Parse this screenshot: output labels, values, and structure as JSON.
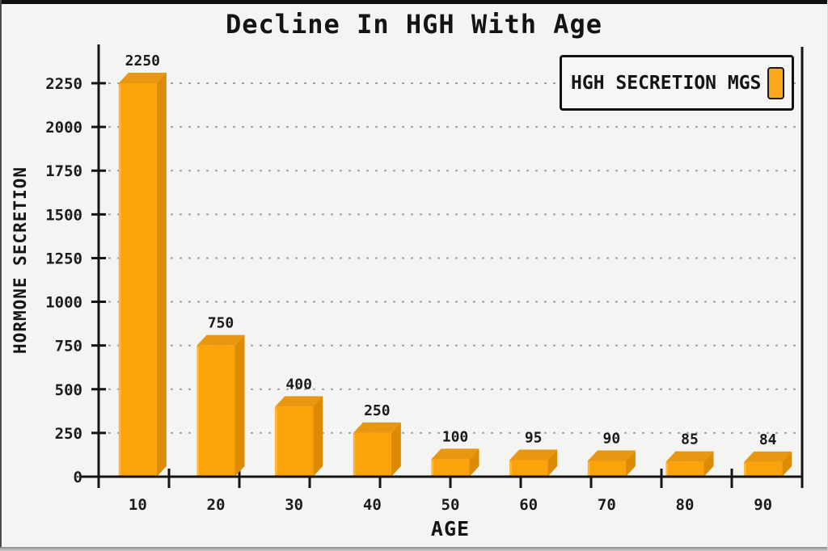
{
  "page": {
    "background": "#f4f4f2"
  },
  "chart_data": {
    "type": "bar",
    "title": "Decline In HGH With Age",
    "xlabel": "AGE",
    "ylabel": "HORMONE SECRETION",
    "series_name": "HGH SECRETION MGS",
    "categories": [
      "10",
      "20",
      "30",
      "40",
      "50",
      "60",
      "70",
      "80",
      "90"
    ],
    "values": [
      2250,
      750,
      400,
      250,
      100,
      95,
      90,
      85,
      84
    ],
    "value_labels": [
      "2250",
      "750",
      "400",
      "250",
      "100",
      "95",
      "90",
      "85",
      "84"
    ],
    "ylim": [
      0,
      2250
    ],
    "yticks": [
      0,
      250,
      500,
      750,
      1000,
      1250,
      1500,
      1750,
      2000,
      2250
    ],
    "grid": "horizontal-dotted",
    "legend_position": "top-right",
    "style_3d": true,
    "colors": {
      "bar_front": "#FBA30B",
      "bar_side": "#DD8A04",
      "bar_top": "#E99711",
      "bar_highlight": "#FFC554",
      "legend_swatch": "#FBA81C",
      "axis": "#141414",
      "grid": "#a0a0a0",
      "text": "#1b1b1b"
    }
  }
}
